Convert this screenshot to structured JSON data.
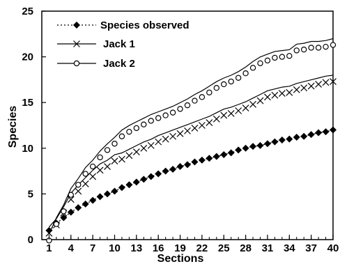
{
  "chart_data": {
    "type": "line",
    "title": "",
    "xlabel": "Sections",
    "ylabel": "Species",
    "xlim": [
      0,
      40
    ],
    "ylim": [
      0,
      25
    ],
    "x_tick_labels": [
      "1",
      "4",
      "7",
      "10",
      "13",
      "16",
      "19",
      "22",
      "25",
      "28",
      "31",
      "34",
      "37",
      "40"
    ],
    "y_tick_labels": [
      "0",
      "5",
      "10",
      "15",
      "20",
      "25"
    ],
    "grid": false,
    "legend_position": "top-left",
    "x": [
      1,
      2,
      3,
      4,
      5,
      6,
      7,
      8,
      9,
      10,
      11,
      12,
      13,
      14,
      15,
      16,
      17,
      18,
      19,
      20,
      21,
      22,
      23,
      24,
      25,
      26,
      27,
      28,
      29,
      30,
      31,
      32,
      33,
      34,
      35,
      36,
      37,
      38,
      39,
      40
    ],
    "series": [
      {
        "name": "Species observed",
        "color": "#000000",
        "line_style": "dotted",
        "marker": "diamond",
        "values": [
          1.0,
          1.8,
          2.4,
          3.0,
          3.5,
          3.9,
          4.3,
          4.7,
          5.0,
          5.3,
          5.7,
          6.0,
          6.3,
          6.6,
          6.9,
          7.2,
          7.5,
          7.7,
          8.0,
          8.2,
          8.5,
          8.7,
          8.9,
          9.1,
          9.3,
          9.5,
          9.8,
          10.0,
          10.2,
          10.3,
          10.5,
          10.7,
          10.9,
          11.0,
          11.2,
          11.3,
          11.5,
          11.7,
          11.8,
          12.0
        ]
      },
      {
        "name": "Jack 1",
        "color": "#000000",
        "line_style": "solid",
        "marker": "x",
        "values": [
          0.7,
          1.6,
          2.9,
          4.4,
          5.3,
          6.1,
          6.9,
          7.6,
          8.0,
          8.6,
          8.8,
          9.2,
          9.6,
          10.0,
          10.3,
          10.7,
          11.0,
          11.3,
          11.6,
          11.9,
          12.2,
          12.5,
          12.8,
          13.2,
          13.6,
          13.8,
          14.1,
          14.4,
          14.8,
          15.2,
          15.6,
          15.8,
          16.0,
          16.1,
          16.4,
          16.6,
          16.8,
          17.0,
          17.2,
          17.3
        ]
      },
      {
        "name": "Jack 2",
        "color": "#000000",
        "line_style": "solid",
        "marker": "circle",
        "values": [
          -0.1,
          1.7,
          3.1,
          4.9,
          6.0,
          7.2,
          8.0,
          9.0,
          9.8,
          10.5,
          11.3,
          11.8,
          12.2,
          12.6,
          13.0,
          13.3,
          13.6,
          13.9,
          14.3,
          14.7,
          15.2,
          15.6,
          16.1,
          16.6,
          17.0,
          17.3,
          17.7,
          18.2,
          18.8,
          19.3,
          19.6,
          19.9,
          20.0,
          20.1,
          20.7,
          20.8,
          21.0,
          21.0,
          21.1,
          21.3
        ]
      }
    ]
  }
}
